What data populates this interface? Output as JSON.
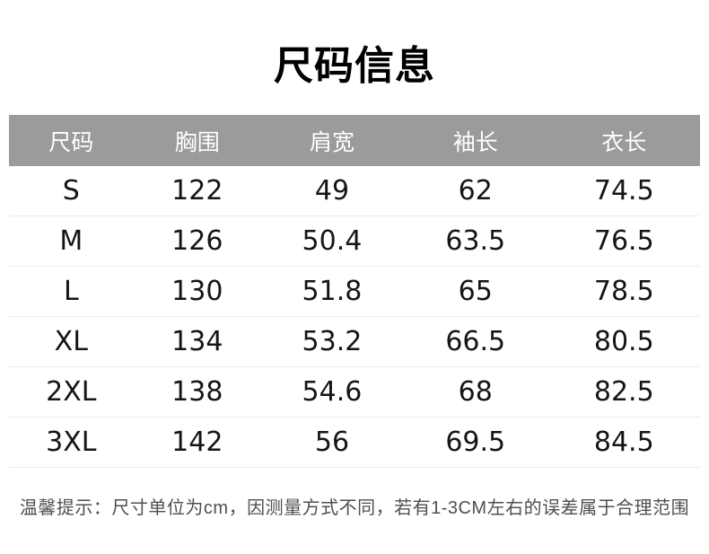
{
  "page": {
    "title": "尺码信息"
  },
  "table": {
    "columns": [
      "尺码",
      "胸围",
      "肩宽",
      "袖长",
      "衣长"
    ],
    "rows": [
      [
        "S",
        "122",
        "49",
        "62",
        "74.5"
      ],
      [
        "M",
        "126",
        "50.4",
        "63.5",
        "76.5"
      ],
      [
        "L",
        "130",
        "51.8",
        "65",
        "78.5"
      ],
      [
        "XL",
        "134",
        "53.2",
        "66.5",
        "80.5"
      ],
      [
        "2XL",
        "138",
        "54.6",
        "68",
        "82.5"
      ],
      [
        "3XL",
        "142",
        "56",
        "69.5",
        "84.5"
      ]
    ]
  },
  "colors": {
    "header_bg": "#9b9b9b",
    "header_text": "#ffffff",
    "body_text": "#151515",
    "divider": "#ebebeb",
    "note_text": "#4f4f4f"
  },
  "note": {
    "text": "温馨提示：尺寸单位为cm，因测量方式不同，若有1-3CM左右的误差属于合理范围"
  }
}
